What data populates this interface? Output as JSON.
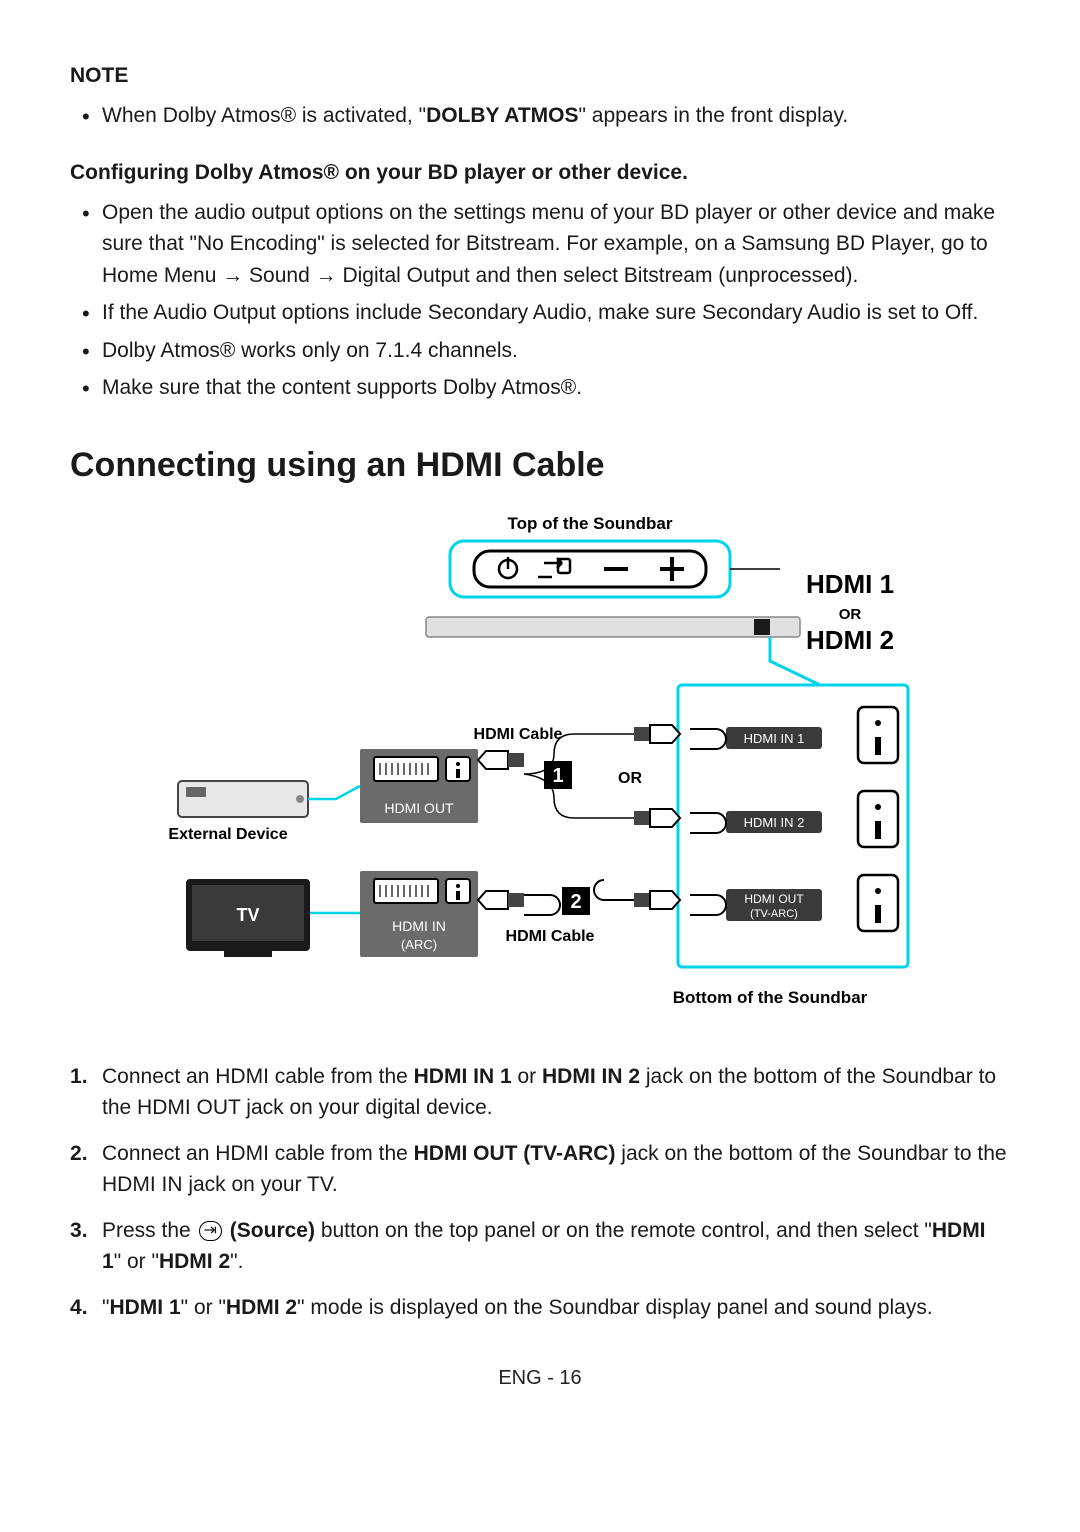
{
  "note": {
    "heading": "NOTE",
    "bullets": [
      {
        "pre": "When Dolby Atmos® is activated, \"",
        "bold": "DOLBY ATMOS",
        "post": "\" appears in the front display."
      }
    ]
  },
  "config": {
    "heading": "Configuring Dolby Atmos® on your BD player or other device.",
    "bullets": [
      "Open the audio output options on the settings menu of your BD player or other device and make sure that \"No Encoding\" is selected for Bitstream. For example, on a Samsung BD Player, go to Home Menu → Sound → Digital Output and then select Bitstream (unprocessed).",
      "If the Audio Output options include Secondary Audio, make sure Secondary Audio is set to Off.",
      "Dolby Atmos® works only on 7.1.4 channels.",
      "Make sure that the content supports Dolby Atmos®."
    ]
  },
  "section_title": "Connecting using an HDMI Cable",
  "diagram": {
    "top_label": "Top of the Soundbar",
    "bottom_label": "Bottom of the Soundbar",
    "hdmi1_label": "HDMI 1",
    "or_small": "OR",
    "hdmi2_label": "HDMI 2",
    "hdmi_cable_1": "HDMI Cable",
    "hdmi_cable_2": "HDMI Cable",
    "or_mid": "OR",
    "external_device": "External Device",
    "tv_label": "TV",
    "hdmi_out": "HDMI OUT",
    "hdmi_in_arc_line1": "HDMI IN",
    "hdmi_in_arc_line2": "(ARC)",
    "port_in1": "HDMI IN 1",
    "port_in2": "HDMI IN 2",
    "port_out_line1": "HDMI OUT",
    "port_out_line2": "(TV-ARC)",
    "colors": {
      "cyan": "#00d4e8",
      "panel_dark": "#3a3a3a",
      "panel_mid": "#6b6b6b",
      "black": "#000000",
      "white": "#ffffff"
    }
  },
  "steps": [
    {
      "parts": [
        "Connect an HDMI cable from the ",
        "__b__HDMI IN 1",
        " or ",
        "__b__HDMI IN 2",
        " jack on the bottom of the Soundbar to the HDMI OUT jack on your digital device."
      ]
    },
    {
      "parts": [
        "Connect an HDMI cable from the ",
        "__b__HDMI OUT (TV-ARC)",
        " jack on the bottom of the Soundbar to the HDMI IN jack on your TV."
      ]
    },
    {
      "parts": [
        "Press the ",
        "__icon__",
        " ",
        "__b__(Source)",
        " button on the top panel or on the remote control, and then select \"",
        "__b__HDMI 1",
        "\" or \"",
        "__b__HDMI 2",
        "\"."
      ]
    },
    {
      "parts": [
        "\"",
        "__b__HDMI 1",
        "\" or \"",
        "__b__HDMI 2",
        "\" mode is displayed on the Soundbar display panel and sound plays."
      ]
    }
  ],
  "footer": "ENG - 16"
}
